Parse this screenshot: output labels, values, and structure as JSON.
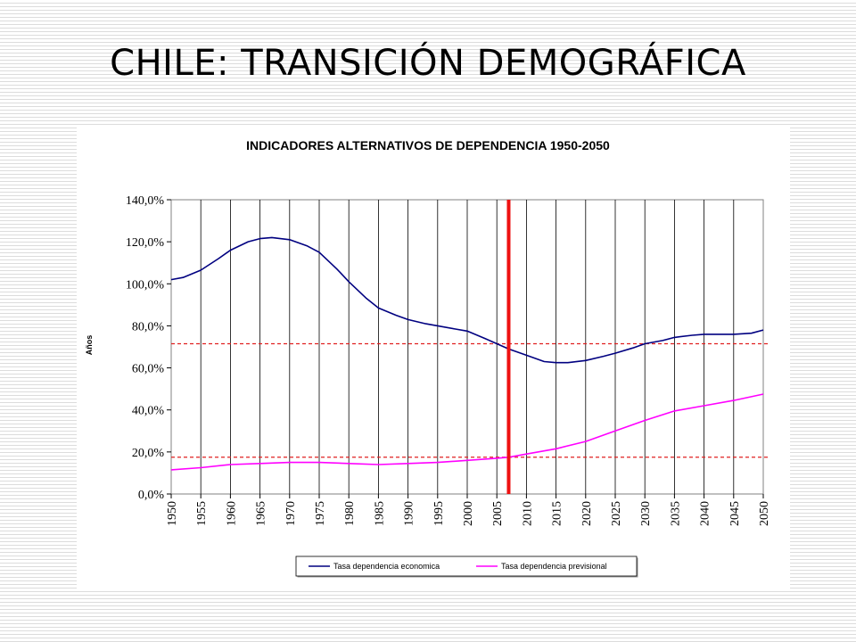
{
  "slide": {
    "title": "CHILE: TRANSICIÓN DEMOGRÁFICA"
  },
  "chart_data": {
    "type": "line",
    "title": "INDICADORES ALTERNATIVOS DE DEPENDENCIA 1950-2050",
    "ylabel": "Años",
    "xlabel": "",
    "ylim": [
      0,
      140
    ],
    "xlim": [
      1950,
      2050
    ],
    "y_ticks": [
      "0,0%",
      "20,0%",
      "40,0%",
      "60,0%",
      "80,0%",
      "100,0%",
      "120,0%",
      "140,0%"
    ],
    "x_ticks": [
      "1950",
      "1955",
      "1960",
      "1965",
      "1970",
      "1975",
      "1980",
      "1985",
      "1990",
      "1995",
      "2000",
      "2005",
      "2010",
      "2015",
      "2020",
      "2025",
      "2030",
      "2035",
      "2040",
      "2045",
      "2050"
    ],
    "grid": "vertical",
    "legend_position": "bottom",
    "reference_lines": {
      "vertical_year": 2007,
      "horizontal_values": [
        71.5,
        17.5
      ]
    },
    "series": [
      {
        "name": "Tasa dependencia economica",
        "color": "#000080",
        "x": [
          1950,
          1952,
          1955,
          1958,
          1960,
          1963,
          1965,
          1967,
          1970,
          1973,
          1975,
          1978,
          1980,
          1983,
          1985,
          1988,
          1990,
          1993,
          1995,
          1998,
          2000,
          2003,
          2005,
          2007,
          2010,
          2013,
          2015,
          2017,
          2020,
          2023,
          2025,
          2028,
          2030,
          2033,
          2035,
          2038,
          2040,
          2043,
          2045,
          2048,
          2050
        ],
        "values": [
          102,
          103,
          106.5,
          112,
          116,
          120,
          121.5,
          122,
          121,
          118,
          115,
          107,
          101,
          93,
          88.5,
          85,
          83,
          81,
          80,
          78.5,
          77.5,
          74,
          71.5,
          69,
          66,
          63,
          62.5,
          62.5,
          63.5,
          65.5,
          67,
          69.5,
          71.5,
          73,
          74.5,
          75.5,
          76,
          76,
          76,
          76.5,
          78
        ]
      },
      {
        "name": "Tasa dependencia previsional",
        "color": "#ff00ff",
        "x": [
          1950,
          1955,
          1960,
          1965,
          1970,
          1975,
          1980,
          1985,
          1990,
          1995,
          2000,
          2005,
          2007,
          2010,
          2015,
          2020,
          2025,
          2030,
          2035,
          2040,
          2045,
          2050
        ],
        "values": [
          11.5,
          12.5,
          14,
          14.5,
          15,
          15,
          14.5,
          14,
          14.5,
          15,
          16,
          17,
          17.5,
          19,
          21.5,
          25,
          30,
          35,
          39.5,
          42,
          44.5,
          47.5
        ]
      }
    ]
  }
}
